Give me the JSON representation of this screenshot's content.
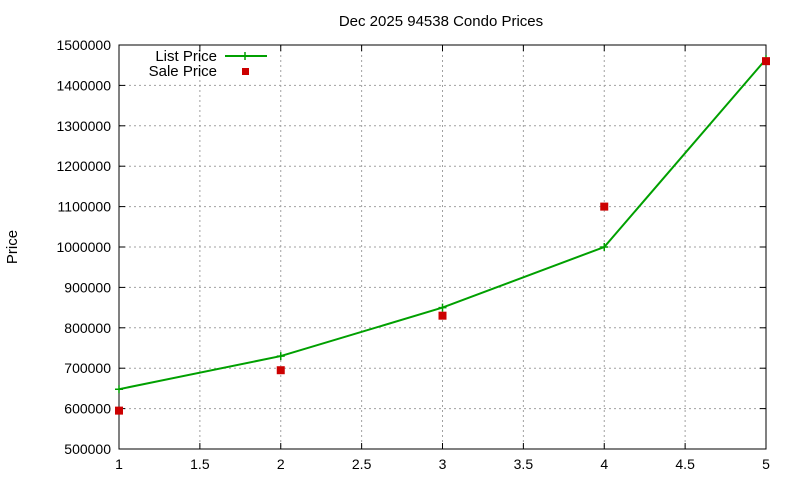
{
  "chart_data": {
    "type": "line",
    "title": "Dec 2025 94538 Condo Prices",
    "xlabel": "",
    "ylabel": "Price",
    "xlim": [
      1,
      5
    ],
    "ylim": [
      500000,
      1500000
    ],
    "x_ticks": [
      "1",
      "1.5",
      "2",
      "2.5",
      "3",
      "3.5",
      "4",
      "4.5",
      "5"
    ],
    "y_ticks": [
      "500000",
      "600000",
      "700000",
      "800000",
      "900000",
      "1000000",
      "1100000",
      "1200000",
      "1300000",
      "1400000",
      "1500000"
    ],
    "grid": true,
    "legend_position": "top-left",
    "series": [
      {
        "name": "List Price",
        "style": "line+cross",
        "color": "#00a000",
        "x": [
          1,
          2,
          3,
          4,
          5
        ],
        "y": [
          648000,
          730000,
          850000,
          1000000,
          1465000
        ]
      },
      {
        "name": "Sale Price",
        "style": "square-markers",
        "color": "#cc0000",
        "x": [
          1,
          2,
          3,
          4,
          5
        ],
        "y": [
          595000,
          695000,
          830000,
          1100000,
          1460000
        ]
      }
    ]
  }
}
